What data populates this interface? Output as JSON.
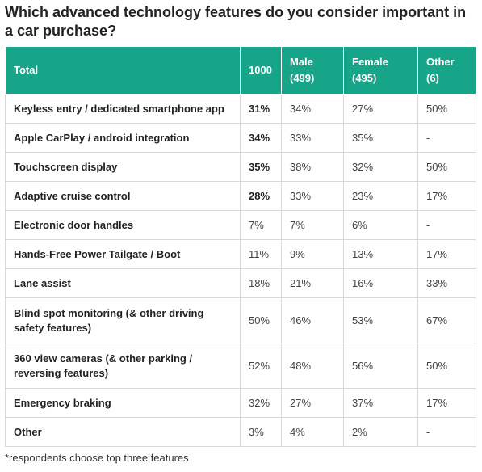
{
  "chart_data": {
    "type": "table",
    "title": "Which advanced technology features do you consider important in a car purchase?",
    "columns": [
      {
        "label": "Total",
        "sub": ""
      },
      {
        "label": "1000",
        "sub": ""
      },
      {
        "label": "Male",
        "sub": "(499)"
      },
      {
        "label": "Female",
        "sub": "(495)"
      },
      {
        "label": "Other",
        "sub": "(6)"
      }
    ],
    "rows": [
      {
        "feature": "Keyless entry / dedicated smartphone app",
        "total": "31%",
        "total_bold": true,
        "male": "34%",
        "female": "27%",
        "other": "50%",
        "tall": false
      },
      {
        "feature": "Apple CarPlay / android integration",
        "total": "34%",
        "total_bold": true,
        "male": "33%",
        "female": "35%",
        "other": "-",
        "tall": false
      },
      {
        "feature": "Touchscreen display",
        "total": "35%",
        "total_bold": true,
        "male": "38%",
        "female": "32%",
        "other": "50%",
        "tall": false
      },
      {
        "feature": "Adaptive cruise control",
        "total": "28%",
        "total_bold": true,
        "male": "33%",
        "female": "23%",
        "other": "17%",
        "tall": false
      },
      {
        "feature": "Electronic door handles",
        "total": "7%",
        "total_bold": false,
        "male": "7%",
        "female": "6%",
        "other": "-",
        "tall": false
      },
      {
        "feature": "Hands-Free Power Tailgate / Boot",
        "total": "11%",
        "total_bold": false,
        "male": "9%",
        "female": "13%",
        "other": "17%",
        "tall": false
      },
      {
        "feature": "Lane assist",
        "total": "18%",
        "total_bold": false,
        "male": "21%",
        "female": "16%",
        "other": "33%",
        "tall": false
      },
      {
        "feature": "Blind spot monitoring (& other driving safety features)",
        "total": "50%",
        "total_bold": false,
        "male": "46%",
        "female": "53%",
        "other": "67%",
        "tall": true
      },
      {
        "feature": "360 view cameras (& other parking / reversing features)",
        "total": "52%",
        "total_bold": false,
        "male": "48%",
        "female": "56%",
        "other": "50%",
        "tall": true
      },
      {
        "feature": "Emergency braking",
        "total": "32%",
        "total_bold": false,
        "male": "27%",
        "female": "37%",
        "other": "17%",
        "tall": false
      },
      {
        "feature": "Other",
        "total": "3%",
        "total_bold": false,
        "male": "4%",
        "female": "2%",
        "other": "-",
        "tall": false
      }
    ],
    "footnote": "*respondents choose top three features",
    "colors": {
      "header_bg": "#17a589",
      "header_text": "#ffffff",
      "border": "#d9d9d9"
    }
  }
}
